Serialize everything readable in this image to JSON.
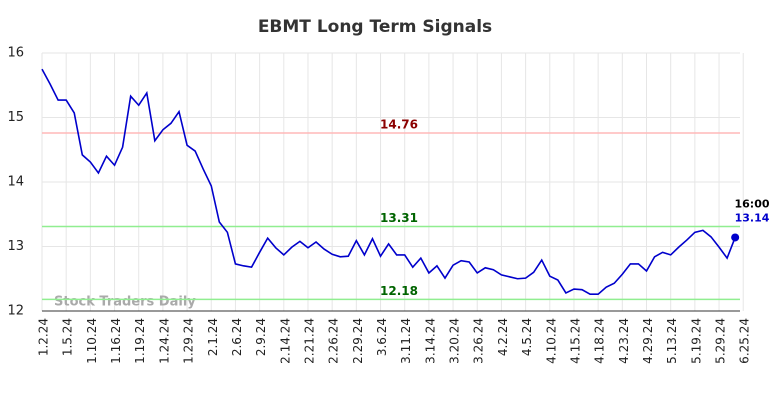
{
  "chart_data": {
    "type": "line",
    "title": "EBMT Long Term Signals",
    "categories": [
      "1.2.24",
      null,
      null,
      "1.5.24",
      null,
      null,
      "1.10.24",
      null,
      null,
      "1.16.24",
      null,
      null,
      "1.19.24",
      null,
      null,
      "1.24.24",
      null,
      null,
      "1.29.24",
      null,
      null,
      "2.1.24",
      null,
      null,
      "2.6.24",
      null,
      null,
      "2.9.24",
      null,
      null,
      "2.14.24",
      null,
      null,
      "2.21.24",
      null,
      null,
      "2.26.24",
      null,
      null,
      "2.29.24",
      null,
      null,
      "3.6.24",
      null,
      null,
      "3.11.24",
      null,
      null,
      "3.14.24",
      null,
      null,
      "3.20.24",
      null,
      null,
      "3.26.24",
      null,
      null,
      "4.2.24",
      null,
      null,
      "4.5.24",
      null,
      null,
      "4.10.24",
      null,
      null,
      "4.15.24",
      null,
      null,
      "4.18.24",
      null,
      null,
      "4.23.24",
      null,
      null,
      "4.29.24",
      null,
      null,
      "5.13.24",
      null,
      null,
      "5.19.24",
      null,
      null,
      "5.29.24",
      null,
      null,
      "6.25.24"
    ],
    "values": [
      15.75,
      15.52,
      15.27,
      15.27,
      15.07,
      14.42,
      14.31,
      14.14,
      14.4,
      14.26,
      14.54,
      15.33,
      15.19,
      15.38,
      14.64,
      14.81,
      14.91,
      15.09,
      14.57,
      14.48,
      14.2,
      13.94,
      13.38,
      13.22,
      12.73,
      12.7,
      12.68,
      12.91,
      13.13,
      12.98,
      12.87,
      12.99,
      13.08,
      12.98,
      13.07,
      12.96,
      12.88,
      12.84,
      12.85,
      13.09,
      12.87,
      13.12,
      12.85,
      13.04,
      12.87,
      12.87,
      12.68,
      12.82,
      12.59,
      12.7,
      12.51,
      12.71,
      12.78,
      12.76,
      12.59,
      12.67,
      12.64,
      12.56,
      12.53,
      12.5,
      12.51,
      12.6,
      12.79,
      12.54,
      12.48,
      12.28,
      12.34,
      12.33,
      12.26,
      12.26,
      12.37,
      12.43,
      12.57,
      12.73,
      12.73,
      12.62,
      12.84,
      12.91,
      12.87,
      12.99,
      13.1,
      13.22,
      13.25,
      13.15,
      12.99,
      12.82,
      13.14,
      null
    ],
    "color": "#0000cc",
    "hlines": [
      {
        "value": 14.76,
        "color": "#ffb8b8",
        "label_color": "#8b0000"
      },
      {
        "value": 13.31,
        "color": "#90ee90",
        "label_color": "#006400"
      },
      {
        "value": 12.18,
        "color": "#90ee90",
        "label_color": "#006400"
      }
    ],
    "last_time": "16:00",
    "watermark": "Stock Traders Daily",
    "ylim": [
      12,
      16
    ],
    "yticks": [
      12,
      13,
      14,
      15,
      16
    ],
    "grid": true
  }
}
